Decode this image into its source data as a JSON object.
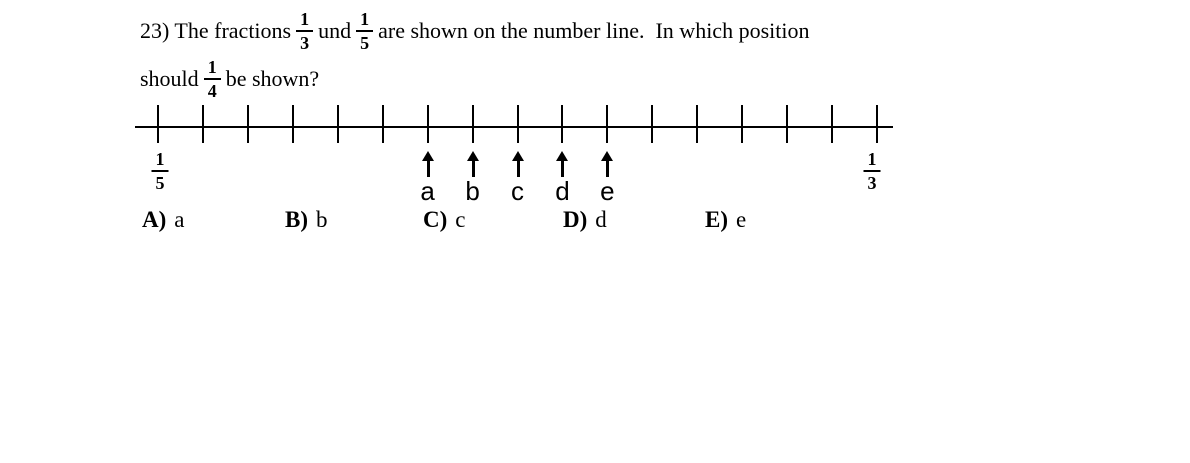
{
  "question": {
    "number_prefix": "23) The fractions",
    "frac_one_third": {
      "num": "1",
      "den": "3"
    },
    "conjunction": "und",
    "frac_one_fifth": {
      "num": "1",
      "den": "5"
    },
    "line1_suffix": "are shown on the number line.  In which position",
    "line2_prefix": "should",
    "frac_one_fourth": {
      "num": "1",
      "den": "4"
    },
    "line2_suffix": "be shown?"
  },
  "numberline": {
    "tick_count": 17,
    "left_label": {
      "num": "1",
      "den": "5"
    },
    "right_label": {
      "num": "1",
      "den": "3"
    },
    "arrows": [
      {
        "label": "a",
        "tick_index": 6
      },
      {
        "label": "b",
        "tick_index": 7
      },
      {
        "label": "c",
        "tick_index": 8
      },
      {
        "label": "d",
        "tick_index": 9
      },
      {
        "label": "e",
        "tick_index": 10
      }
    ]
  },
  "choices": [
    {
      "key": "A)",
      "value": "a"
    },
    {
      "key": "B)",
      "value": "b"
    },
    {
      "key": "C)",
      "value": "c"
    },
    {
      "key": "D)",
      "value": "d"
    },
    {
      "key": "E)",
      "value": "e"
    }
  ],
  "colors": {
    "ink": "#000000",
    "background": "#ffffff"
  }
}
